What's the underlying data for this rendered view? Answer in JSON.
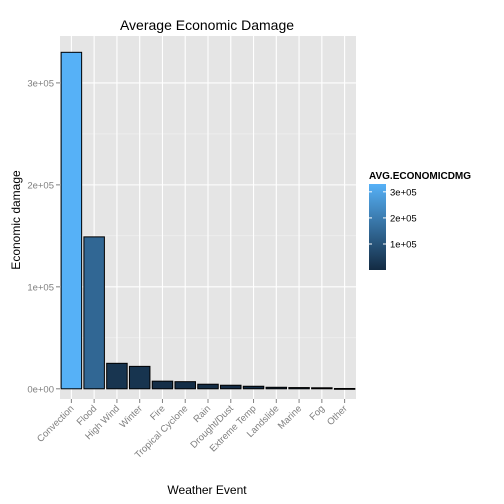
{
  "chart_data": {
    "type": "bar",
    "title": "Average Economic Damage",
    "xlabel": "Weather Event",
    "ylabel": "Economic damage",
    "categories": [
      "Convection",
      "Flood",
      "High Wind",
      "Winter",
      "Fire",
      "Tropical Cyclone",
      "Rain",
      "Drought/Dust",
      "Extreme Temp",
      "Landslide",
      "Marine",
      "Fog",
      "Other"
    ],
    "values": [
      330000,
      149000,
      25000,
      22000,
      7500,
      7000,
      4500,
      3500,
      2500,
      1500,
      1200,
      1000,
      300
    ],
    "ylim": [
      -10000,
      346000
    ],
    "yticks": [
      0,
      100000,
      200000,
      300000
    ],
    "ytick_labels": [
      "0e+00",
      "1e+05",
      "2e+05",
      "3e+05"
    ],
    "grid": true,
    "legend": {
      "title": "AVG.ECONOMICDMG",
      "placement": "right",
      "ticks": [
        100000,
        200000,
        300000
      ],
      "tick_labels": [
        "1e+05",
        "2e+05",
        "3e+05"
      ],
      "low_color": "#132B43",
      "high_color": "#56B1F7"
    },
    "colors": {
      "panel_background": "#E5E5E5",
      "grid_major": "#FFFFFF",
      "grid_minor": "#F2F2F2",
      "bar_outline": "#000000"
    }
  }
}
